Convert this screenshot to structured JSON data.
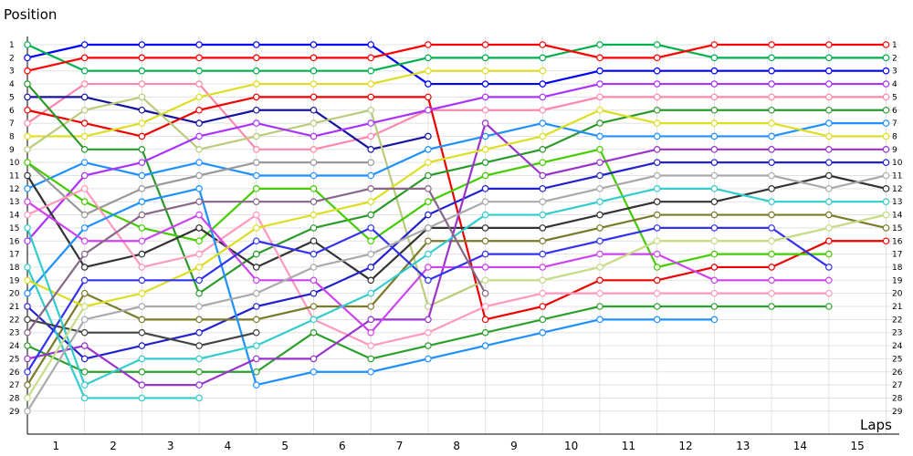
{
  "chart_data": {
    "type": "line",
    "title": "",
    "xlabel": "Laps",
    "ylabel": "Position",
    "x": [
      0,
      1,
      2,
      3,
      4,
      5,
      6,
      7,
      8,
      9,
      10,
      11,
      12,
      13,
      14,
      15
    ],
    "x_tick_labels": [
      "1",
      "2",
      "3",
      "4",
      "5",
      "6",
      "7",
      "8",
      "9",
      "10",
      "11",
      "12",
      "13",
      "14",
      "15"
    ],
    "y_tick_labels": [
      "1",
      "2",
      "3",
      "4",
      "5",
      "6",
      "7",
      "8",
      "9",
      "10",
      "11",
      "12",
      "13",
      "14",
      "15",
      "16",
      "17",
      "18",
      "19",
      "20",
      "21",
      "22",
      "23",
      "24",
      "25",
      "26",
      "27",
      "28",
      "29"
    ],
    "xlim": [
      0,
      15.5
    ],
    "ylim": [
      29,
      1
    ],
    "grid": true,
    "legend": "none",
    "series": [
      {
        "color": "#0000ff",
        "values": [
          2,
          1,
          1,
          1,
          1,
          1,
          1,
          4,
          4,
          4,
          3,
          3,
          3,
          3,
          3,
          3
        ]
      },
      {
        "color": "#00b050",
        "values": [
          1,
          3,
          3,
          3,
          3,
          3,
          3,
          2,
          2,
          2,
          1,
          1,
          2,
          2,
          2,
          2
        ]
      },
      {
        "color": "#ff0000",
        "values": [
          3,
          2,
          2,
          2,
          2,
          2,
          2,
          1,
          1,
          1,
          2,
          2,
          1,
          1,
          1,
          1
        ]
      },
      {
        "color": "#ff88aa",
        "values": [
          7,
          4,
          4,
          4,
          9,
          9,
          8,
          6,
          6,
          6,
          5,
          5,
          5,
          5,
          5,
          5
        ]
      },
      {
        "color": "#1414a0",
        "values": [
          5,
          5,
          6,
          7,
          6,
          6,
          9,
          8,
          null,
          null,
          null,
          null,
          null,
          null,
          null,
          null
        ]
      },
      {
        "color": "#ee0000",
        "values": [
          6,
          7,
          8,
          6,
          5,
          5,
          5,
          5,
          22,
          21,
          19,
          19,
          18,
          18,
          16,
          16
        ]
      },
      {
        "color": "#dddd22",
        "values": [
          8,
          8,
          7,
          5,
          4,
          4,
          4,
          3,
          3,
          3,
          null,
          null,
          null,
          null,
          null,
          null
        ]
      },
      {
        "color": "#b8cc7a",
        "values": [
          9,
          6,
          5,
          9,
          8,
          7,
          6,
          21,
          19,
          19,
          18,
          16,
          16,
          16,
          15,
          14
        ]
      },
      {
        "color": "#2a9a2a",
        "values": [
          4,
          9,
          9,
          20,
          17,
          15,
          14,
          11,
          10,
          9,
          7,
          6,
          6,
          6,
          6,
          6
        ]
      },
      {
        "color": "#1e90ff",
        "values": [
          12,
          10,
          11,
          10,
          11,
          11,
          11,
          9,
          8,
          7,
          8,
          8,
          8,
          8,
          7,
          7
        ]
      },
      {
        "color": "#aa33ff",
        "values": [
          16,
          11,
          10,
          8,
          7,
          8,
          7,
          6,
          5,
          5,
          4,
          4,
          4,
          4,
          4,
          4
        ]
      },
      {
        "color": "#999999",
        "values": [
          10,
          14,
          12,
          11,
          10,
          10,
          10,
          null,
          null,
          null,
          null,
          null,
          null,
          null,
          null,
          null
        ]
      },
      {
        "color": "#44cc00",
        "values": [
          10,
          13,
          15,
          16,
          12,
          12,
          16,
          13,
          11,
          10,
          9,
          18,
          17,
          17,
          17,
          null
        ]
      },
      {
        "color": "#333333",
        "values": [
          11,
          18,
          17,
          15,
          18,
          16,
          19,
          15,
          15,
          15,
          14,
          13,
          13,
          12,
          11,
          12
        ]
      },
      {
        "color": "#ff99bb",
        "values": [
          14,
          12,
          18,
          17,
          14,
          22,
          24,
          23,
          21,
          20,
          20,
          20,
          20,
          20,
          20,
          null
        ]
      },
      {
        "color": "#2222cc",
        "values": [
          21,
          25,
          24,
          23,
          21,
          20,
          18,
          14,
          12,
          12,
          11,
          10,
          10,
          10,
          10,
          10
        ]
      },
      {
        "color": "#7a7a2a",
        "values": [
          27,
          20,
          22,
          22,
          22,
          21,
          21,
          16,
          16,
          16,
          15,
          14,
          14,
          14,
          14,
          15
        ]
      },
      {
        "color": "#2ca02c",
        "values": [
          24,
          26,
          26,
          26,
          26,
          23,
          25,
          24,
          23,
          22,
          21,
          21,
          21,
          21,
          21,
          null
        ]
      },
      {
        "color": "#ffffff",
        "values": [
          null,
          null,
          null,
          null,
          null,
          null,
          null,
          null,
          null,
          null,
          null,
          null,
          null,
          null,
          null,
          null
        ]
      },
      {
        "color": "#1e90ff",
        "values": [
          20,
          15,
          13,
          12,
          27,
          26,
          26,
          25,
          24,
          23,
          22,
          22,
          22,
          null,
          null,
          null
        ]
      },
      {
        "color": "#9933cc",
        "values": [
          25,
          24,
          27,
          27,
          25,
          25,
          22,
          22,
          7,
          11,
          10,
          9,
          9,
          9,
          9,
          9
        ]
      },
      {
        "color": "#33cccc",
        "values": [
          18,
          28,
          28,
          28,
          null,
          null,
          null,
          null,
          null,
          null,
          null,
          null,
          null,
          null,
          null,
          null
        ]
      },
      {
        "color": "#cc44ee",
        "values": [
          13,
          16,
          16,
          14,
          19,
          19,
          23,
          18,
          18,
          18,
          17,
          17,
          19,
          19,
          19,
          null
        ]
      },
      {
        "color": "#dddd22",
        "values": [
          19,
          21,
          20,
          18,
          15,
          14,
          13,
          10,
          9,
          8,
          6,
          7,
          7,
          7,
          8,
          8
        ]
      },
      {
        "color": "#444444",
        "values": [
          22,
          23,
          23,
          24,
          23,
          null,
          null,
          null,
          null,
          null,
          null,
          null,
          null,
          null,
          null,
          null
        ]
      },
      {
        "color": "#3333ee",
        "values": [
          26,
          19,
          19,
          19,
          16,
          17,
          15,
          19,
          17,
          17,
          16,
          15,
          15,
          15,
          18,
          null
        ]
      },
      {
        "color": "#aaaaaa",
        "values": [
          29,
          22,
          21,
          21,
          20,
          18,
          17,
          15,
          13,
          13,
          12,
          11,
          11,
          11,
          12,
          11
        ]
      },
      {
        "color": "#33cccc",
        "values": [
          15,
          27,
          25,
          25,
          24,
          22,
          20,
          17,
          14,
          14,
          13,
          12,
          12,
          13,
          13,
          13
        ]
      },
      {
        "color": "#886688",
        "values": [
          23,
          17,
          14,
          13,
          13,
          13,
          12,
          12,
          20,
          null,
          null,
          null,
          null,
          null,
          null,
          null
        ]
      },
      {
        "color": "#c8dd88",
        "values": [
          28,
          21,
          null,
          null,
          null,
          null,
          null,
          null,
          19,
          19,
          18,
          16,
          16,
          16,
          15,
          14
        ]
      }
    ]
  }
}
